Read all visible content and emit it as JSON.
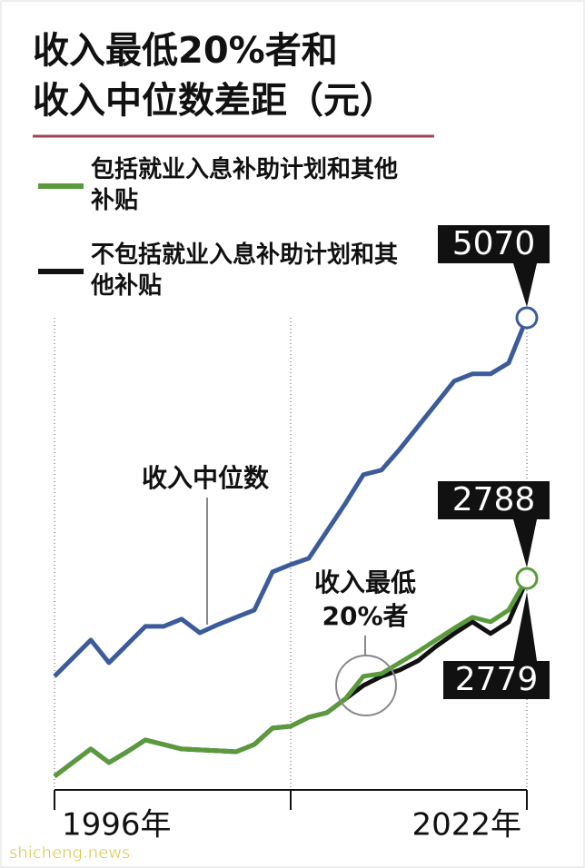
{
  "chart_data": {
    "type": "line",
    "title": [
      "收入最低20%者和",
      "收入中位数差距（元）"
    ],
    "x": [
      1996,
      1997,
      1998,
      1999,
      2000,
      2001,
      2002,
      2003,
      2004,
      2005,
      2006,
      2007,
      2008,
      2009,
      2010,
      2011,
      2012,
      2013,
      2014,
      2015,
      2016,
      2017,
      2018,
      2019,
      2020,
      2021,
      2022
    ],
    "xlim": [
      1996,
      2022
    ],
    "xticks": [
      {
        "value": 1996,
        "label": "1996年"
      },
      {
        "value": 2022,
        "label": "2022年"
      }
    ],
    "xminor": [
      2009
    ],
    "ylim": [
      0,
      6000
    ],
    "series": [
      {
        "name": "收入中位数",
        "color": "#3b5b9a",
        "values": [
          1932,
          2091,
          2250,
          2051,
          2210,
          2369,
          2369,
          2433,
          2313,
          2385,
          2449,
          2512,
          2846,
          2910,
          2965,
          3204,
          3442,
          3697,
          3737,
          3919,
          4118,
          4317,
          4516,
          4579,
          4579,
          4675,
          5070
        ]
      },
      {
        "name": "包括就业入息补助计划和其他补贴",
        "color": "#5a9a3c",
        "values": [
          1057,
          1177,
          1296,
          1177,
          1272,
          1375,
          1336,
          1296,
          1288,
          1280,
          1272,
          1336,
          1479,
          1495,
          1574,
          1614,
          1733,
          1932,
          1956,
          2051,
          2147,
          2250,
          2353,
          2449,
          2409,
          2512,
          2788
        ]
      },
      {
        "name": "不包括就业入息补助计划和其他补贴",
        "color": "#111111",
        "values": [
          1057,
          1177,
          1296,
          1177,
          1272,
          1375,
          1336,
          1296,
          1288,
          1280,
          1272,
          1336,
          1479,
          1495,
          1574,
          1614,
          1733,
          1852,
          1932,
          1988,
          2067,
          2194,
          2306,
          2409,
          2306,
          2409,
          2779
        ]
      }
    ],
    "group_label": [
      "收入最低",
      "20%者"
    ],
    "source": "shicheng.news"
  }
}
